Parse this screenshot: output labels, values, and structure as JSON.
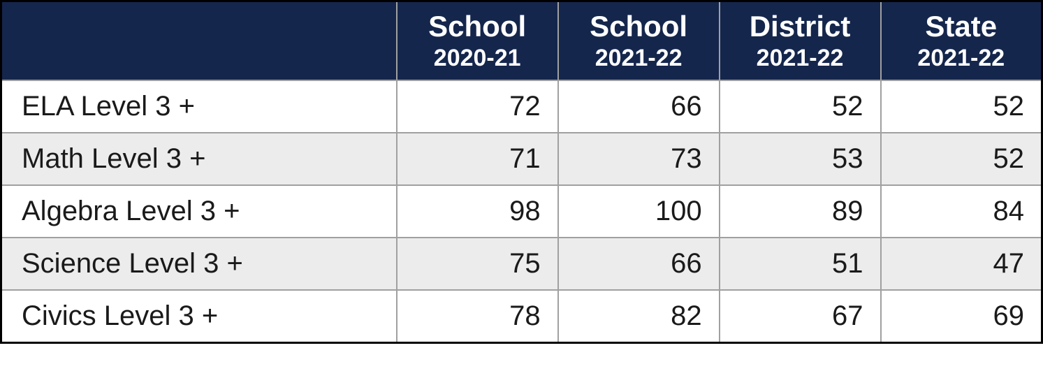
{
  "table": {
    "type": "table",
    "header_bg": "#15264c",
    "header_text_color": "#ffffff",
    "row_odd_bg": "#ffffff",
    "row_even_bg": "#ececec",
    "grid_color": "#a0a0a0",
    "outer_border_color": "#000000",
    "body_text_color": "#1a1a1a",
    "header_fontsize_line1": 42,
    "header_fontsize_line2": 34,
    "body_fontsize": 40,
    "columns": [
      {
        "line1": "",
        "line2": "",
        "align": "left"
      },
      {
        "line1": "School",
        "line2": "2020-21",
        "align": "right"
      },
      {
        "line1": "School",
        "line2": "2021-22",
        "align": "right"
      },
      {
        "line1": "District",
        "line2": "2021-22",
        "align": "right"
      },
      {
        "line1": "State",
        "line2": "2021-22",
        "align": "right"
      }
    ],
    "rows": [
      {
        "label": "ELA Level 3 +",
        "values": [
          72,
          66,
          52,
          52
        ]
      },
      {
        "label": "Math Level 3 +",
        "values": [
          71,
          73,
          53,
          52
        ]
      },
      {
        "label": "Algebra Level 3 +",
        "values": [
          98,
          100,
          89,
          84
        ]
      },
      {
        "label": "Science Level 3 +",
        "values": [
          75,
          66,
          51,
          47
        ]
      },
      {
        "label": "Civics Level 3 +",
        "values": [
          78,
          82,
          67,
          69
        ]
      }
    ]
  }
}
